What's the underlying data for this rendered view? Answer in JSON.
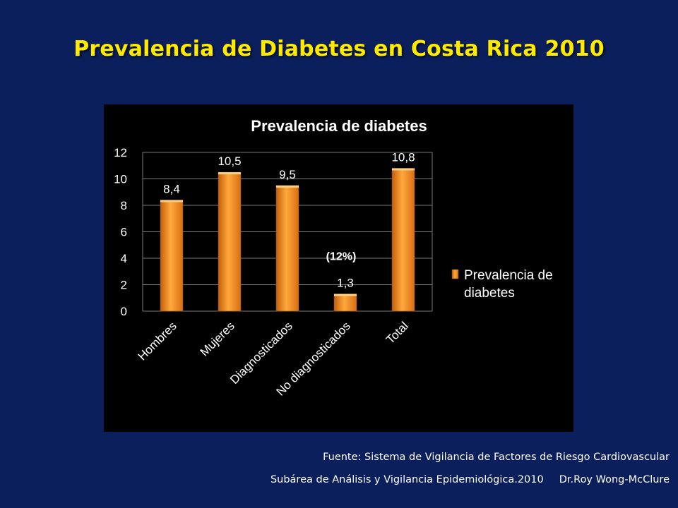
{
  "slide": {
    "title": "Prevalencia de Diabetes en Costa Rica 2010",
    "footer": {
      "source": "Fuente: Sistema de Vigilancia de Factores de Riesgo Cardiovascular",
      "department": "Subárea de Análisis y Vigilancia Epidemiológica.2010",
      "author": "Dr.Roy Wong-McClure"
    },
    "colors": {
      "background": "#0a1f5c",
      "title": "#ffea00",
      "bar": "#f08a1e"
    }
  },
  "chart_data": {
    "type": "bar",
    "title": "Prevalencia de diabetes",
    "categories": [
      "Hombres",
      "Mujeres",
      "Diagnosticados",
      "No diagnosticados",
      "Total"
    ],
    "series": [
      {
        "name": "Prevalencia de diabetes",
        "values": [
          8.4,
          10.5,
          9.5,
          1.3,
          10.8
        ]
      }
    ],
    "data_labels": [
      "8,4",
      "10,5",
      "9,5",
      "1,3",
      "10,8"
    ],
    "y_ticks": [
      "0",
      "2",
      "4",
      "6",
      "8",
      "10",
      "12"
    ],
    "ylim": [
      0,
      12
    ],
    "annotation": {
      "text": "(12%)",
      "category_index": 3
    },
    "grid": true,
    "legend_position": "right"
  }
}
